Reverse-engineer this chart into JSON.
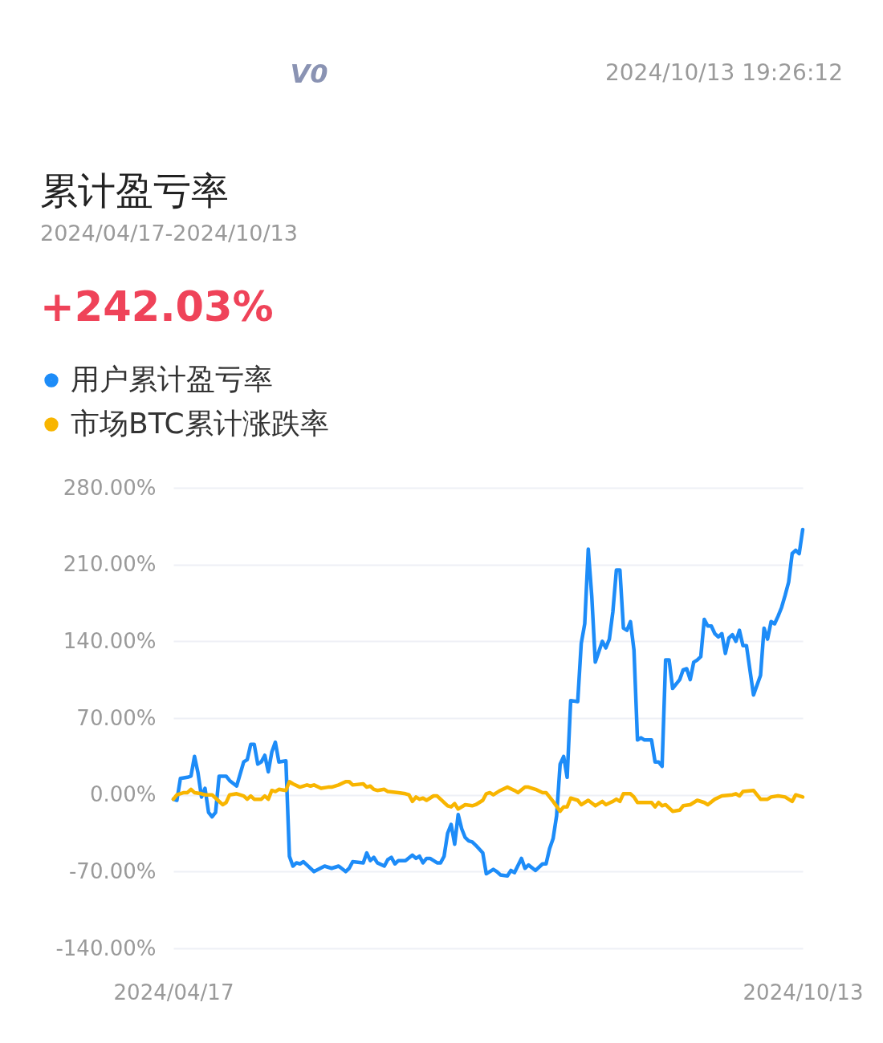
{
  "chart_data": {
    "type": "line",
    "title": "累计盈亏率",
    "subtitle": "2024/04/17-2024/10/13",
    "annotations": [
      "V0",
      "2024/10/13 19:26:12",
      "+242.03%"
    ],
    "legend": "top left",
    "grid": "y",
    "xlim": [
      "2024-04-17",
      "2024-10-13"
    ],
    "xticks": [
      {
        "value": "2024-04-17",
        "label": "2024/04/17"
      },
      {
        "value": "2024-10-13",
        "label": "2024/10/13"
      }
    ],
    "ylim": [
      -140,
      280
    ],
    "yticks": [
      {
        "value": -140,
        "label": "-140.00%"
      },
      {
        "value": -70,
        "label": "-70.00%"
      },
      {
        "value": 0,
        "label": "0.00%"
      },
      {
        "value": 70,
        "label": "70.00%"
      },
      {
        "value": 140,
        "label": "140.00%"
      },
      {
        "value": 210,
        "label": "210.00%"
      },
      {
        "value": 280,
        "label": "280.00%"
      }
    ],
    "series": [
      {
        "name": "用户累计盈亏率",
        "color": "#1d8cf8",
        "x": [
          "2024-04-17",
          "2024-04-18",
          "2024-04-19",
          "2024-04-21",
          "2024-04-22",
          "2024-04-23",
          "2024-04-24",
          "2024-04-25",
          "2024-04-26",
          "2024-04-27",
          "2024-04-28",
          "2024-04-29",
          "2024-04-30",
          "2024-05-02",
          "2024-05-03",
          "2024-05-05",
          "2024-05-07",
          "2024-05-08",
          "2024-05-09",
          "2024-05-10",
          "2024-05-11",
          "2024-05-12",
          "2024-05-13",
          "2024-05-14",
          "2024-05-15",
          "2024-05-16",
          "2024-05-17",
          "2024-05-19",
          "2024-05-20",
          "2024-05-21",
          "2024-05-22",
          "2024-05-23",
          "2024-05-24",
          "2024-05-27",
          "2024-05-30",
          "2024-06-01",
          "2024-06-03",
          "2024-06-05",
          "2024-06-06",
          "2024-06-07",
          "2024-06-10",
          "2024-06-11",
          "2024-06-12",
          "2024-06-13",
          "2024-06-14",
          "2024-06-16",
          "2024-06-17",
          "2024-06-18",
          "2024-06-19",
          "2024-06-20",
          "2024-06-22",
          "2024-06-24",
          "2024-06-25",
          "2024-06-26",
          "2024-06-27",
          "2024-06-28",
          "2024-06-29",
          "2024-07-01",
          "2024-07-02",
          "2024-07-03",
          "2024-07-04",
          "2024-07-05",
          "2024-07-06",
          "2024-07-07",
          "2024-07-08",
          "2024-07-09",
          "2024-07-10",
          "2024-07-11",
          "2024-07-12",
          "2024-07-14",
          "2024-07-15",
          "2024-07-16",
          "2024-07-17",
          "2024-07-18",
          "2024-07-19",
          "2024-07-21",
          "2024-07-22",
          "2024-07-23",
          "2024-07-25",
          "2024-07-26",
          "2024-07-27",
          "2024-07-29",
          "2024-07-31",
          "2024-08-01",
          "2024-08-02",
          "2024-08-03",
          "2024-08-04",
          "2024-08-05",
          "2024-08-06",
          "2024-08-07",
          "2024-08-08",
          "2024-08-10",
          "2024-08-11",
          "2024-08-12",
          "2024-08-13",
          "2024-08-14",
          "2024-08-15",
          "2024-08-17",
          "2024-08-18",
          "2024-08-19",
          "2024-08-20",
          "2024-08-21",
          "2024-08-22",
          "2024-08-23",
          "2024-08-24",
          "2024-08-25",
          "2024-08-26",
          "2024-08-27",
          "2024-08-28",
          "2024-08-29",
          "2024-08-31",
          "2024-09-01",
          "2024-09-02",
          "2024-09-03",
          "2024-09-04",
          "2024-09-05",
          "2024-09-06",
          "2024-09-08",
          "2024-09-09",
          "2024-09-10",
          "2024-09-11",
          "2024-09-12",
          "2024-09-13",
          "2024-09-14",
          "2024-09-15",
          "2024-09-16",
          "2024-09-17",
          "2024-09-18",
          "2024-09-19",
          "2024-09-20",
          "2024-09-21",
          "2024-09-22",
          "2024-09-23",
          "2024-09-24",
          "2024-09-25",
          "2024-09-26",
          "2024-09-27",
          "2024-09-29",
          "2024-10-01",
          "2024-10-02",
          "2024-10-03",
          "2024-10-04",
          "2024-10-05",
          "2024-10-06",
          "2024-10-07",
          "2024-10-08",
          "2024-10-09",
          "2024-10-10",
          "2024-10-11",
          "2024-10-12",
          "2024-10-13"
        ],
        "values": [
          -4,
          -5,
          15,
          16,
          17,
          35,
          20,
          -2,
          6,
          -16,
          -20,
          -16,
          17,
          17,
          13,
          8,
          30,
          32,
          46,
          46,
          28,
          30,
          36,
          21,
          39,
          48,
          30,
          31,
          -56,
          -65,
          -62,
          -63,
          -61,
          -70,
          -65,
          -67,
          -65,
          -70,
          -67,
          -61,
          -62,
          -53,
          -60,
          -57,
          -62,
          -65,
          -59,
          -57,
          -63,
          -60,
          -60,
          -55,
          -58,
          -56,
          -62,
          -58,
          -58,
          -62,
          -62,
          -56,
          -35,
          -27,
          -45,
          -18,
          -31,
          -39,
          -42,
          -43,
          -46,
          -53,
          -72,
          -70,
          -68,
          -70,
          -73,
          -74,
          -69,
          -71,
          -58,
          -67,
          -64,
          -69,
          -63,
          -63,
          -49,
          -40,
          -19,
          28,
          35,
          16,
          86,
          85,
          138,
          156,
          224,
          181,
          121,
          140,
          134,
          142,
          167,
          205,
          205,
          152,
          150,
          158,
          132,
          50,
          52,
          50,
          50,
          30,
          30,
          26,
          123,
          123,
          97,
          105,
          114,
          115,
          105,
          121,
          123,
          126,
          160,
          154,
          154,
          147,
          144,
          147,
          129,
          143,
          146,
          140,
          150,
          136,
          136,
          91,
          109,
          152,
          142,
          158,
          156,
          163,
          171,
          182,
          194,
          220,
          223,
          220,
          242
        ]
      },
      {
        "name": "市场BTC累计涨跌率",
        "color": "#f8b500",
        "x": [
          "2024-04-17",
          "2024-04-18",
          "2024-04-20",
          "2024-04-21",
          "2024-04-22",
          "2024-04-23",
          "2024-04-25",
          "2024-04-26",
          "2024-04-28",
          "2024-04-29",
          "2024-05-01",
          "2024-05-02",
          "2024-05-03",
          "2024-05-05",
          "2024-05-07",
          "2024-05-08",
          "2024-05-09",
          "2024-05-10",
          "2024-05-12",
          "2024-05-13",
          "2024-05-14",
          "2024-05-15",
          "2024-05-16",
          "2024-05-17",
          "2024-05-19",
          "2024-05-20",
          "2024-05-21",
          "2024-05-23",
          "2024-05-25",
          "2024-05-26",
          "2024-05-27",
          "2024-05-29",
          "2024-05-31",
          "2024-06-01",
          "2024-06-03",
          "2024-06-05",
          "2024-06-06",
          "2024-06-07",
          "2024-06-10",
          "2024-06-11",
          "2024-06-12",
          "2024-06-13",
          "2024-06-14",
          "2024-06-16",
          "2024-06-17",
          "2024-06-20",
          "2024-06-22",
          "2024-06-23",
          "2024-06-24",
          "2024-06-25",
          "2024-06-26",
          "2024-06-27",
          "2024-06-28",
          "2024-06-30",
          "2024-07-01",
          "2024-07-02",
          "2024-07-04",
          "2024-07-05",
          "2024-07-06",
          "2024-07-07",
          "2024-07-09",
          "2024-07-11",
          "2024-07-12",
          "2024-07-14",
          "2024-07-15",
          "2024-07-16",
          "2024-07-17",
          "2024-07-19",
          "2024-07-21",
          "2024-07-23",
          "2024-07-24",
          "2024-07-26",
          "2024-07-27",
          "2024-07-29",
          "2024-07-31",
          "2024-08-01",
          "2024-08-02",
          "2024-08-03",
          "2024-08-05",
          "2024-08-06",
          "2024-08-07",
          "2024-08-08",
          "2024-08-10",
          "2024-08-11",
          "2024-08-13",
          "2024-08-15",
          "2024-08-17",
          "2024-08-18",
          "2024-08-20",
          "2024-08-21",
          "2024-08-22",
          "2024-08-23",
          "2024-08-25",
          "2024-08-26",
          "2024-08-27",
          "2024-08-31",
          "2024-09-01",
          "2024-09-02",
          "2024-09-03",
          "2024-09-04",
          "2024-09-06",
          "2024-09-08",
          "2024-09-09",
          "2024-09-11",
          "2024-09-13",
          "2024-09-15",
          "2024-09-16",
          "2024-09-18",
          "2024-09-20",
          "2024-09-23",
          "2024-09-24",
          "2024-09-25",
          "2024-09-26",
          "2024-09-29",
          "2024-10-01",
          "2024-10-03",
          "2024-10-04",
          "2024-10-06",
          "2024-10-08",
          "2024-10-10",
          "2024-10-11",
          "2024-10-13"
        ],
        "values": [
          -4,
          0,
          2,
          2,
          5,
          2,
          1,
          0,
          0,
          -3,
          -9,
          -7,
          0,
          1,
          -1,
          -4,
          -1,
          -4,
          -4,
          -1,
          -4,
          4,
          3,
          5,
          4,
          12,
          10,
          7,
          9,
          8,
          9,
          6,
          7,
          7,
          9,
          12,
          12,
          9,
          10,
          7,
          8,
          5,
          4,
          5,
          3,
          2,
          1,
          0,
          -6,
          -2,
          -4,
          -3,
          -5,
          -1,
          -1,
          -4,
          -10,
          -11,
          -8,
          -13,
          -9,
          -10,
          -9,
          -5,
          1,
          2,
          0,
          4,
          7,
          4,
          2,
          7,
          7,
          5,
          2,
          2,
          -2,
          -6,
          -15,
          -11,
          -11,
          -3,
          -5,
          -9,
          -5,
          -10,
          -6,
          -9,
          -6,
          -4,
          -6,
          1,
          1,
          -2,
          -7,
          -7,
          -11,
          -7,
          -10,
          -9,
          -15,
          -14,
          -10,
          -9,
          -5,
          -7,
          -9,
          -4,
          -1,
          0,
          1,
          -1,
          3,
          4,
          -4,
          -4,
          -2,
          -1,
          -2,
          -6,
          0,
          -2
        ]
      }
    ]
  }
}
